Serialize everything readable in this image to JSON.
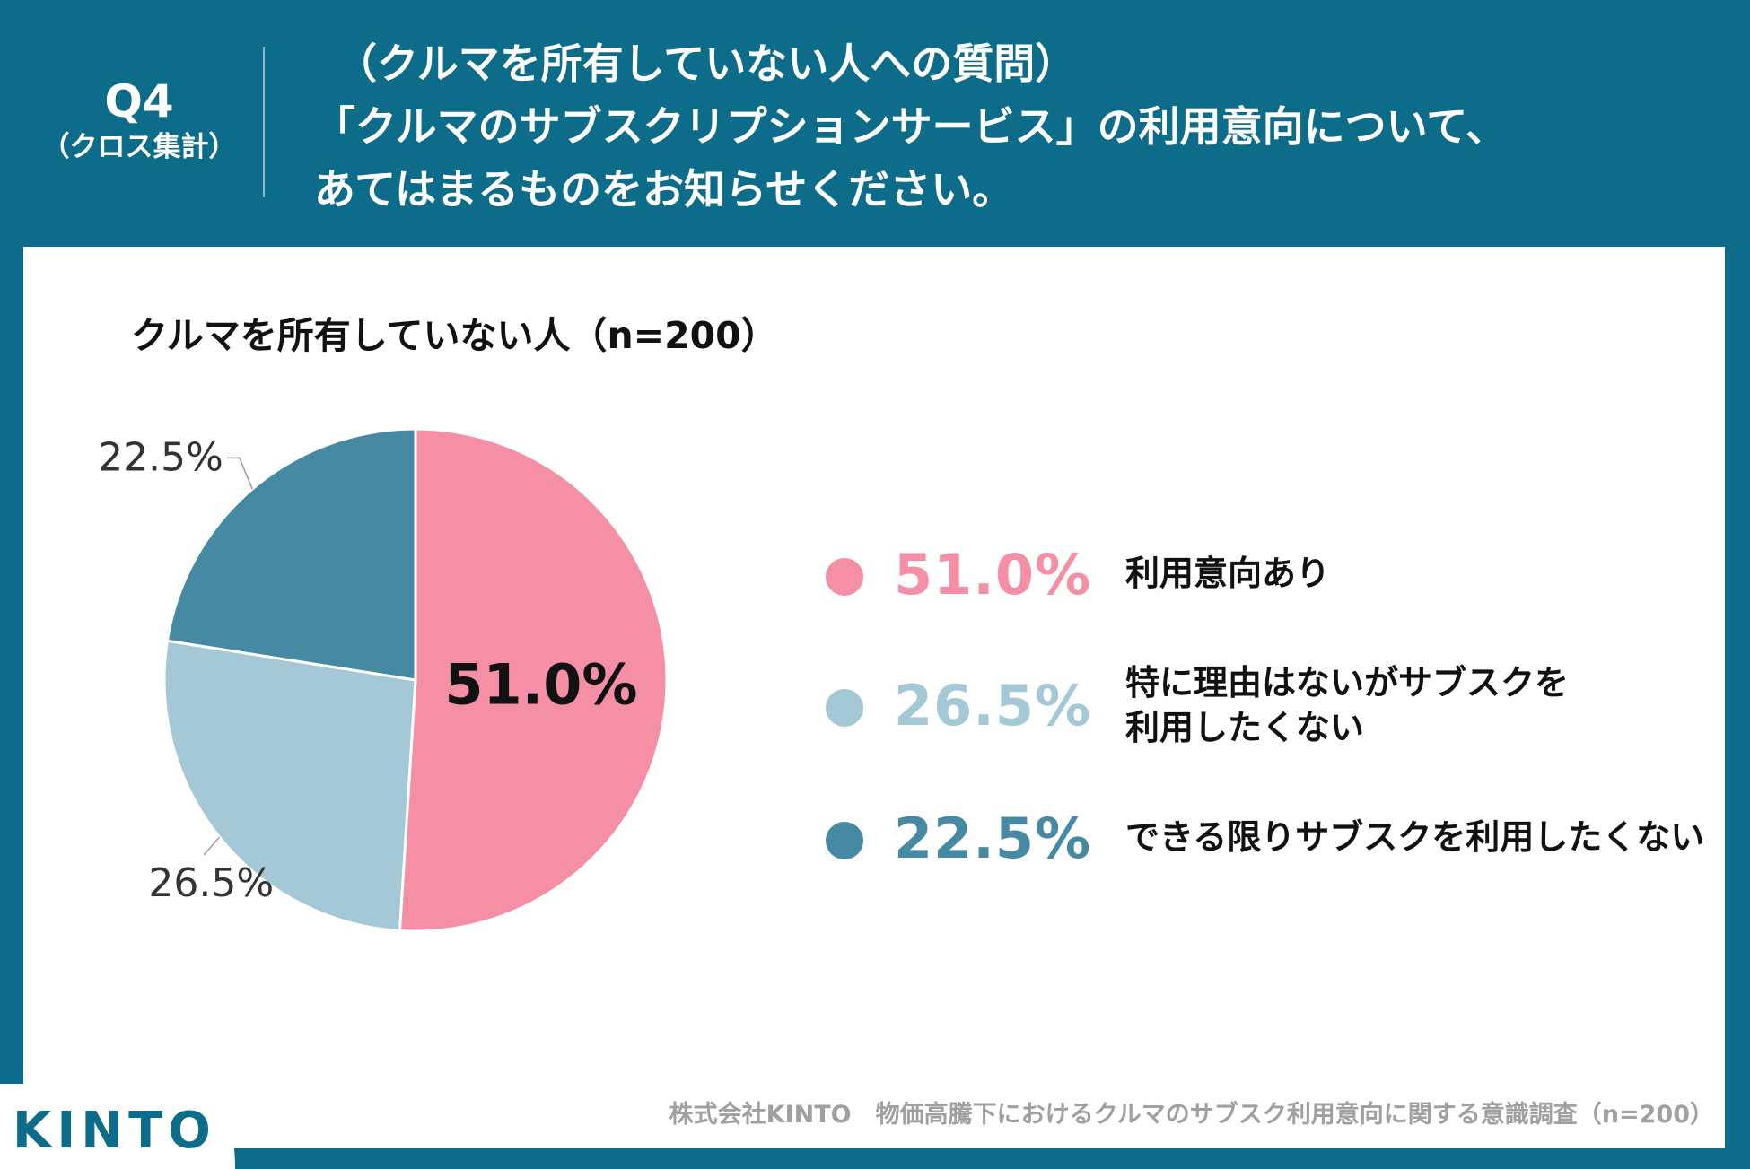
{
  "header": {
    "q_number": "Q4",
    "q_sub": "（クロス集計）",
    "question_lines": [
      "（クルマを所有していない人への質問）",
      "「クルマのサブスクリプションサービス」の利用意向について、",
      "あてはまるものをお知らせください。"
    ]
  },
  "chart_data": {
    "type": "pie",
    "title": "クルマを所有していない人（n=200）",
    "slices": [
      {
        "label": "利用意向あり",
        "value": 51.0,
        "display": "51.0%",
        "color": "#f58fa6"
      },
      {
        "label": "特に理由はないがサブスクを利用したくない",
        "value": 26.5,
        "display": "26.5%",
        "color": "#a4c8d5"
      },
      {
        "label": "できる限りサブスクを利用したくない",
        "value": 22.5,
        "display": "22.5%",
        "color": "#4589a2"
      }
    ],
    "legend": [
      {
        "pct": "51.0%",
        "label_lines": [
          "利用意向あり"
        ],
        "color": "#f58fa6"
      },
      {
        "pct": "26.5%",
        "label_lines": [
          "特に理由はないがサブスクを",
          "利用したくない"
        ],
        "color": "#a4c8d5"
      },
      {
        "pct": "22.5%",
        "label_lines": [
          "できる限りサブスクを利用したくない"
        ],
        "color": "#4589a2"
      }
    ]
  },
  "footer": {
    "logo": "KINTO",
    "source": "株式会社KINTO　物価高騰下におけるクルマのサブスク利用意向に関する意識調査（n=200）"
  }
}
